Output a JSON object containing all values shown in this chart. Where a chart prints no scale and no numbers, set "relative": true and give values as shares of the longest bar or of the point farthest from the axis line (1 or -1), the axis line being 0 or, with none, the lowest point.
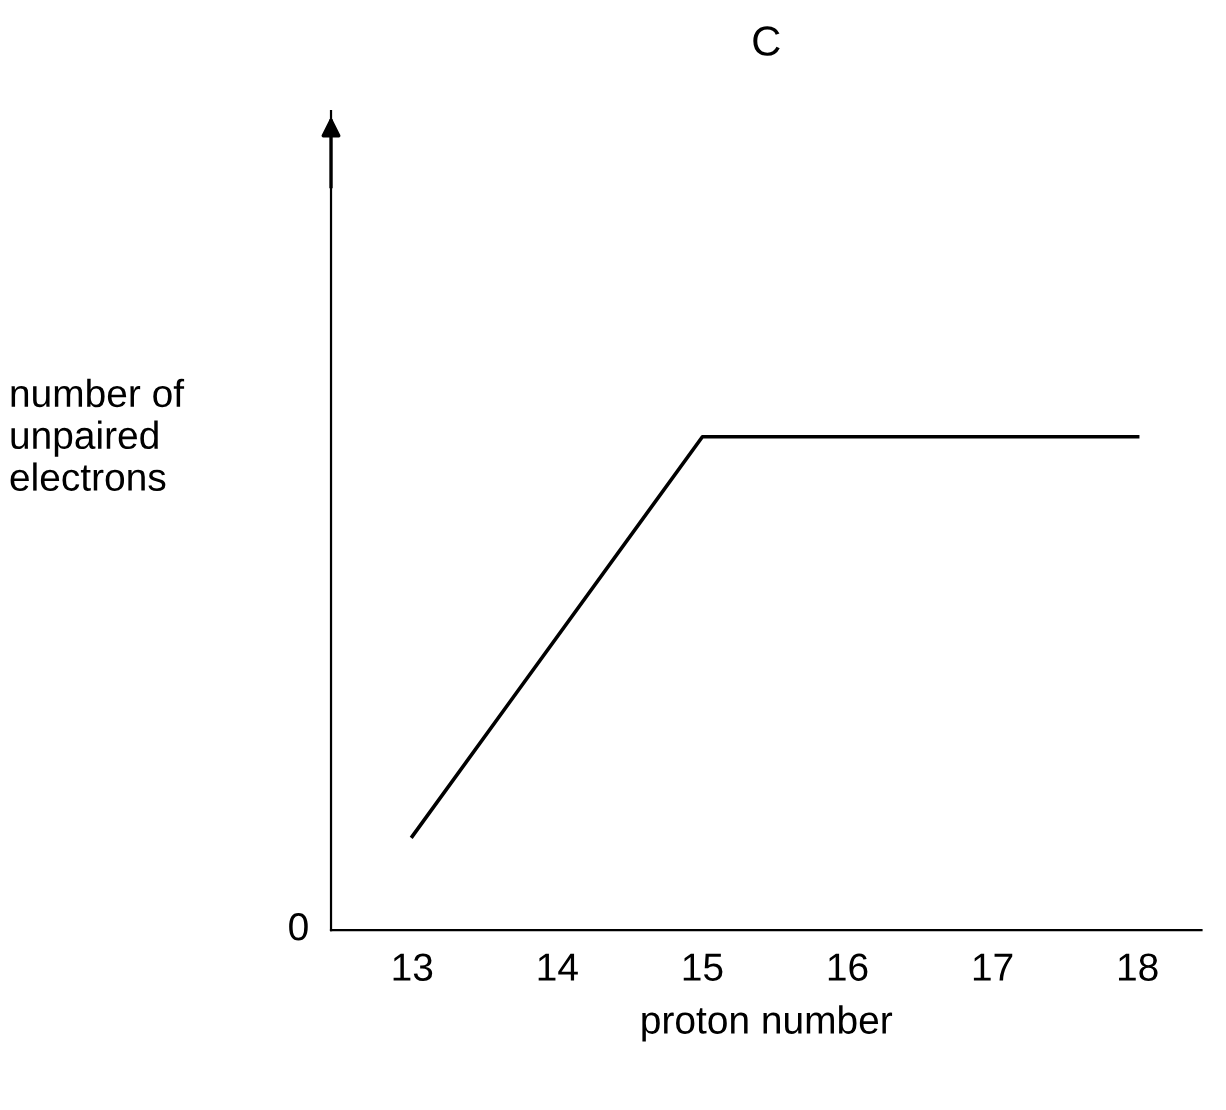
{
  "chart_data": {
    "type": "line",
    "title": "C",
    "xlabel": "proton number",
    "ylabel": "number of\nunpaired\nelectrons",
    "relative": true,
    "x": [
      13,
      15,
      18
    ],
    "values": [
      0.19,
      1,
      1
    ],
    "color": "#000000",
    "xlim": [
      12.44,
      18.44
    ],
    "xticks": [
      13,
      14,
      15,
      16,
      17,
      18
    ],
    "annotations": [
      "0"
    ],
    "grid": false,
    "legend": false,
    "marker": "none",
    "line_style": "solid"
  }
}
